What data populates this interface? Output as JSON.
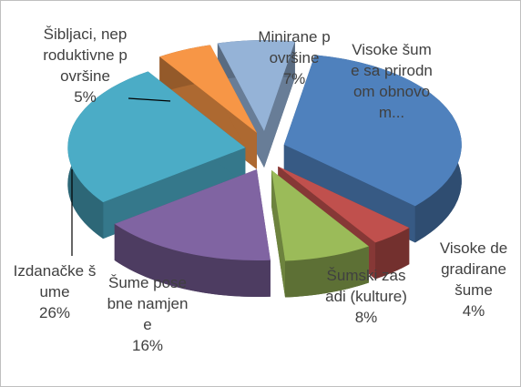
{
  "chart_data": {
    "type": "pie3d",
    "categories": [
      "Visoke šume sa prirodnom obnovom...",
      "Visoke degradirane šume",
      "Šumski zasadi (kulture)",
      "Šume posebne namjene",
      "Izdanačke šume",
      "Šibljaci, neproduktivne površine",
      "Minirane površine"
    ],
    "values": [
      34,
      4,
      8,
      16,
      26,
      5,
      7
    ],
    "value_labels": [
      null,
      "4%",
      "8%",
      "16%",
      "26%",
      "5%",
      "7%"
    ],
    "colors": [
      "#4f81bd",
      "#c0504d",
      "#9bbb59",
      "#8064a2",
      "#4bacc6",
      "#f79646",
      "#95b3d7"
    ]
  }
}
